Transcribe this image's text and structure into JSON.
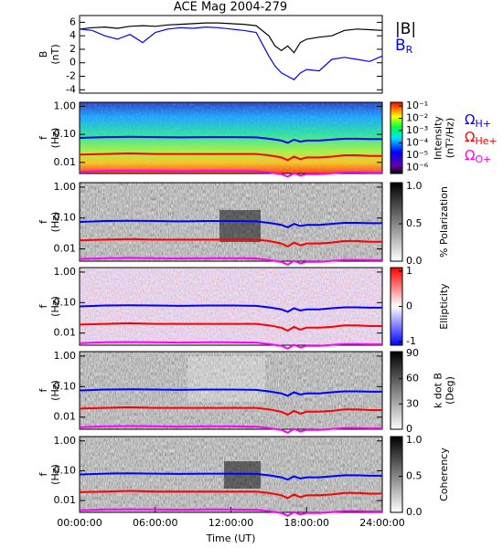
{
  "chart_data": [
    {
      "type": "line",
      "title": "ACE Mag 2004-279",
      "ylabel": [
        "B",
        "(nT)"
      ],
      "x": [
        0,
        1,
        2,
        3,
        4,
        5,
        6,
        7,
        8,
        9,
        10,
        11,
        12,
        13,
        14,
        15,
        15.5,
        16,
        16.5,
        17,
        17.5,
        18,
        19,
        20,
        21,
        22,
        23,
        24
      ],
      "xlim": [
        0,
        24
      ],
      "ylim": [
        -4.5,
        7
      ],
      "yticks": [
        -4,
        -2,
        0,
        2,
        4,
        6
      ],
      "series": [
        {
          "name": "|B|",
          "color": "#000000",
          "values": [
            5,
            5.2,
            5.3,
            5.1,
            5.4,
            5.5,
            5.4,
            5.6,
            5.7,
            5.8,
            5.9,
            5.9,
            5.8,
            5.7,
            5.5,
            4,
            2.5,
            1.8,
            2.5,
            1.5,
            3,
            3.5,
            3.8,
            4,
            4.8,
            5,
            4.9,
            4.8
          ]
        },
        {
          "name": "B",
          "subscript": "R",
          "color": "#0000ff",
          "values": [
            5,
            4.8,
            4,
            3.5,
            4.2,
            3,
            4.5,
            5,
            5.2,
            5.1,
            5.3,
            5.2,
            5,
            4.8,
            4.5,
            1,
            -0.5,
            -1.5,
            -2,
            -2.5,
            -1.5,
            -1,
            -1.2,
            0.5,
            0.8,
            0.5,
            0.2,
            1
          ]
        }
      ]
    },
    {
      "type": "spectrogram",
      "ylabel": [
        "f",
        "(Hz)"
      ],
      "log_y": true,
      "x": [
        0,
        2,
        4,
        6,
        8,
        10,
        12,
        14,
        15,
        16,
        16.5,
        17,
        17.5,
        18,
        19,
        20,
        21,
        22,
        23,
        24
      ],
      "xlim": [
        0,
        24
      ],
      "ylim": [
        0.004,
        1.4
      ],
      "yticks": [
        {
          "value": 1,
          "label": "1.00"
        },
        {
          "value": 0.1,
          "label": "0.10"
        },
        0.01
      ],
      "colorbar": {
        "colormap": "jet",
        "label": [
          "Intensity",
          "(nT²/Hz)"
        ],
        "lim": [
          -6.5,
          -0.7
        ],
        "ticks": [
          {
            "value": -1,
            "label": "10⁻¹"
          },
          {
            "value": -2,
            "label": "10⁻²"
          },
          {
            "value": -3,
            "label": "10⁻³"
          },
          {
            "value": -4,
            "label": "10⁻⁴"
          },
          {
            "value": -5,
            "label": "10⁻⁵"
          },
          {
            "value": -6,
            "label": "10⁻⁶"
          }
        ]
      },
      "series": [
        {
          "name": "Ω",
          "subscript": "H+",
          "color": "#0000ff",
          "values": [
            0.075,
            0.08,
            0.082,
            0.08,
            0.078,
            0.08,
            0.08,
            0.078,
            0.07,
            0.06,
            0.05,
            0.065,
            0.055,
            0.06,
            0.06,
            0.065,
            0.07,
            0.07,
            0.068,
            0.068
          ]
        },
        {
          "name": "Ω",
          "subscript": "He+",
          "color": "#ff0000",
          "values": [
            0.019,
            0.02,
            0.021,
            0.02,
            0.02,
            0.02,
            0.02,
            0.02,
            0.018,
            0.015,
            0.012,
            0.016,
            0.013,
            0.015,
            0.015,
            0.016,
            0.018,
            0.018,
            0.017,
            0.017
          ]
        },
        {
          "name": "Ω",
          "subscript": "O+",
          "color": "#ff00ff",
          "values": [
            0.0047,
            0.005,
            0.0051,
            0.005,
            0.0049,
            0.005,
            0.005,
            0.0049,
            0.0044,
            0.0038,
            0.0031,
            0.0041,
            0.0034,
            0.0038,
            0.0038,
            0.0041,
            0.0044,
            0.0044,
            0.0043,
            0.0043
          ]
        }
      ]
    },
    {
      "type": "spectrogram",
      "ylabel": [
        "f",
        "(Hz)"
      ],
      "log_y": true,
      "x": [
        0,
        2,
        4,
        6,
        8,
        10,
        12,
        14,
        15,
        16,
        16.5,
        17,
        17.5,
        18,
        19,
        20,
        21,
        22,
        23,
        24
      ],
      "xlim": [
        0,
        24
      ],
      "ylim": [
        0.004,
        1.4
      ],
      "yticks": [
        {
          "value": 1,
          "label": "1.00"
        },
        {
          "value": 0.1,
          "label": "0.10"
        },
        0.01
      ],
      "colorbar": {
        "colormap": "gray",
        "label": [
          "% Polarization"
        ],
        "lim": [
          0,
          1.05
        ],
        "ticks": [
          {
            "value": 0,
            "label": "0.0"
          },
          0.5,
          {
            "value": 1,
            "label": "1.0"
          }
        ]
      },
      "series": [
        {
          "color": "#0000ff",
          "values": [
            0.075,
            0.08,
            0.082,
            0.08,
            0.078,
            0.08,
            0.08,
            0.078,
            0.07,
            0.06,
            0.05,
            0.065,
            0.055,
            0.06,
            0.06,
            0.065,
            0.07,
            0.07,
            0.068,
            0.068
          ]
        },
        {
          "color": "#ff0000",
          "values": [
            0.019,
            0.02,
            0.021,
            0.02,
            0.02,
            0.02,
            0.02,
            0.02,
            0.018,
            0.015,
            0.012,
            0.016,
            0.013,
            0.015,
            0.015,
            0.016,
            0.018,
            0.018,
            0.017,
            0.017
          ]
        },
        {
          "color": "#ff00ff",
          "values": [
            0.0047,
            0.005,
            0.0051,
            0.005,
            0.0049,
            0.005,
            0.005,
            0.0049,
            0.0044,
            0.0038,
            0.0031,
            0.0041,
            0.0034,
            0.0038,
            0.0038,
            0.0041,
            0.0044,
            0.0044,
            0.0043,
            0.0043
          ]
        }
      ]
    },
    {
      "type": "spectrogram",
      "ylabel": [
        "f",
        "(Hz)"
      ],
      "log_y": true,
      "x": [
        0,
        2,
        4,
        6,
        8,
        10,
        12,
        14,
        15,
        16,
        16.5,
        17,
        17.5,
        18,
        19,
        20,
        21,
        22,
        23,
        24
      ],
      "xlim": [
        0,
        24
      ],
      "ylim": [
        0.004,
        1.4
      ],
      "yticks": [
        {
          "value": 1,
          "label": "1.00"
        },
        {
          "value": 0.1,
          "label": "0.10"
        },
        0.01
      ],
      "colorbar": {
        "colormap": "bwr",
        "label": [
          "Ellipticity"
        ],
        "lim": [
          -1.1,
          1.1
        ],
        "ticks": [
          1,
          0,
          -1
        ]
      },
      "series": [
        {
          "color": "#0000ff",
          "values": [
            0.075,
            0.08,
            0.082,
            0.08,
            0.078,
            0.08,
            0.08,
            0.078,
            0.07,
            0.06,
            0.05,
            0.065,
            0.055,
            0.06,
            0.06,
            0.065,
            0.07,
            0.07,
            0.068,
            0.068
          ]
        },
        {
          "color": "#ff0000",
          "values": [
            0.019,
            0.02,
            0.021,
            0.02,
            0.02,
            0.02,
            0.02,
            0.02,
            0.018,
            0.015,
            0.012,
            0.016,
            0.013,
            0.015,
            0.015,
            0.016,
            0.018,
            0.018,
            0.017,
            0.017
          ]
        },
        {
          "color": "#ff00ff",
          "values": [
            0.0047,
            0.005,
            0.0051,
            0.005,
            0.0049,
            0.005,
            0.005,
            0.0049,
            0.0044,
            0.0038,
            0.0031,
            0.0041,
            0.0034,
            0.0038,
            0.0038,
            0.0041,
            0.0044,
            0.0044,
            0.0043,
            0.0043
          ]
        }
      ]
    },
    {
      "type": "spectrogram",
      "ylabel": [
        "f",
        "(Hz)"
      ],
      "log_y": true,
      "x": [
        0,
        2,
        4,
        6,
        8,
        10,
        12,
        14,
        15,
        16,
        16.5,
        17,
        17.5,
        18,
        19,
        20,
        21,
        22,
        23,
        24
      ],
      "xlim": [
        0,
        24
      ],
      "ylim": [
        0.004,
        1.4
      ],
      "yticks": [
        {
          "value": 1,
          "label": "1.00"
        },
        {
          "value": 0.1,
          "label": "0.10"
        },
        0.01
      ],
      "colorbar": {
        "colormap": "gray",
        "label": [
          "k dot B",
          "(Deg)"
        ],
        "lim": [
          0,
          92
        ],
        "ticks": [
          0,
          30,
          60,
          90
        ]
      },
      "series": [
        {
          "color": "#0000ff",
          "values": [
            0.075,
            0.08,
            0.082,
            0.08,
            0.078,
            0.08,
            0.08,
            0.078,
            0.07,
            0.06,
            0.05,
            0.065,
            0.055,
            0.06,
            0.06,
            0.065,
            0.07,
            0.07,
            0.068,
            0.068
          ]
        },
        {
          "color": "#ff0000",
          "values": [
            0.019,
            0.02,
            0.021,
            0.02,
            0.02,
            0.02,
            0.02,
            0.02,
            0.018,
            0.015,
            0.012,
            0.016,
            0.013,
            0.015,
            0.015,
            0.016,
            0.018,
            0.018,
            0.017,
            0.017
          ]
        },
        {
          "color": "#ff00ff",
          "values": [
            0.0047,
            0.005,
            0.0051,
            0.005,
            0.0049,
            0.005,
            0.005,
            0.0049,
            0.0044,
            0.0038,
            0.0031,
            0.0041,
            0.0034,
            0.0038,
            0.0038,
            0.0041,
            0.0044,
            0.0044,
            0.0043,
            0.0043
          ]
        }
      ]
    },
    {
      "type": "spectrogram",
      "ylabel": [
        "f",
        "(Hz)"
      ],
      "log_y": true,
      "xlabel": "Time (UT)",
      "x": [
        0,
        2,
        4,
        6,
        8,
        10,
        12,
        14,
        15,
        16,
        16.5,
        17,
        17.5,
        18,
        19,
        20,
        21,
        22,
        23,
        24
      ],
      "xlim": [
        0,
        24
      ],
      "ylim": [
        0.004,
        1.4
      ],
      "xticks": [
        {
          "value": 0,
          "label": "00:00:00"
        },
        {
          "value": 6,
          "label": "06:00:00"
        },
        {
          "value": 12,
          "label": "12:00:00"
        },
        {
          "value": 18,
          "label": "18:00:00"
        },
        {
          "value": 24,
          "label": "24:00:00"
        }
      ],
      "yticks": [
        {
          "value": 1,
          "label": "1.00"
        },
        {
          "value": 0.1,
          "label": "0.10"
        },
        0.01
      ],
      "colorbar": {
        "colormap": "gray",
        "label": [
          "Coherency"
        ],
        "lim": [
          0,
          1.05
        ],
        "ticks": [
          {
            "value": 0,
            "label": "0.0"
          },
          0.5,
          {
            "value": 1,
            "label": "1.0"
          }
        ]
      },
      "series": [
        {
          "color": "#0000ff",
          "values": [
            0.075,
            0.08,
            0.082,
            0.08,
            0.078,
            0.08,
            0.08,
            0.078,
            0.07,
            0.06,
            0.05,
            0.065,
            0.055,
            0.06,
            0.06,
            0.065,
            0.07,
            0.07,
            0.068,
            0.068
          ]
        },
        {
          "color": "#ff0000",
          "values": [
            0.019,
            0.02,
            0.021,
            0.02,
            0.02,
            0.02,
            0.02,
            0.02,
            0.018,
            0.015,
            0.012,
            0.016,
            0.013,
            0.015,
            0.015,
            0.016,
            0.018,
            0.018,
            0.017,
            0.017
          ]
        },
        {
          "color": "#ff00ff",
          "values": [
            0.0047,
            0.005,
            0.0051,
            0.005,
            0.0049,
            0.005,
            0.005,
            0.0049,
            0.0044,
            0.0038,
            0.0031,
            0.0041,
            0.0034,
            0.0038,
            0.0038,
            0.0041,
            0.0044,
            0.0044,
            0.0043,
            0.0043
          ]
        }
      ]
    }
  ]
}
